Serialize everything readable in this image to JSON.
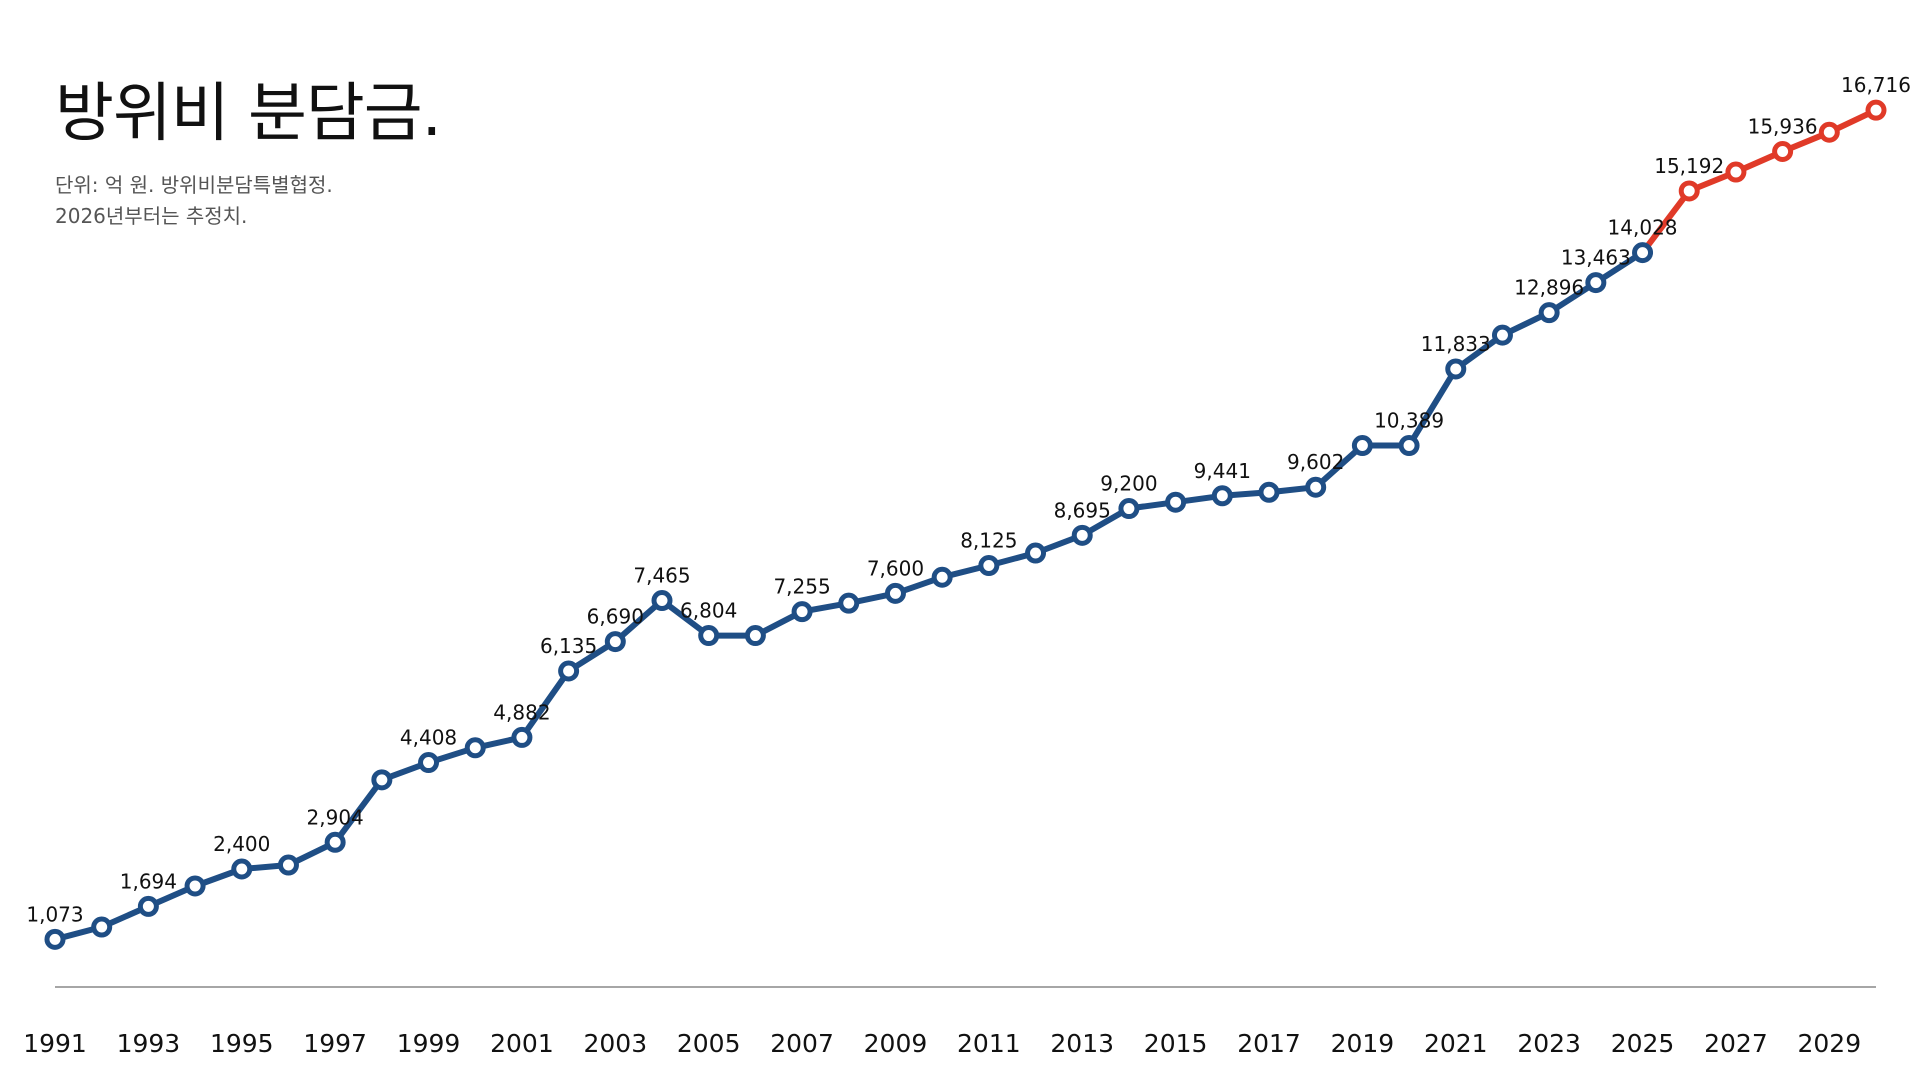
{
  "colors": {
    "actual": "#1F4E85",
    "estimate": "#E03A28",
    "axis": "#888888",
    "text": "#111111",
    "subtitle": "#555555",
    "background": "#ffffff"
  },
  "chart_data": {
    "type": "line",
    "title": "방위비 분담금.",
    "subtitle_lines": [
      "단위: 억 원. 방위비분담특별협정.",
      "2026년부터는 추정치."
    ],
    "xlabel": "",
    "ylabel": "",
    "grid": false,
    "legend": "none",
    "x": [
      1991,
      1992,
      1993,
      1994,
      1995,
      1996,
      1997,
      1998,
      1999,
      2000,
      2001,
      2002,
      2003,
      2004,
      2005,
      2006,
      2007,
      2008,
      2009,
      2010,
      2011,
      2012,
      2013,
      2014,
      2015,
      2016,
      2017,
      2018,
      2019,
      2020,
      2021,
      2022,
      2023,
      2024,
      2025,
      2026,
      2027,
      2028,
      2029,
      2030
    ],
    "x_tick_labels": [
      "1991",
      "1993",
      "1995",
      "1997",
      "1999",
      "2001",
      "2003",
      "2005",
      "2007",
      "2009",
      "2011",
      "2013",
      "2015",
      "2017",
      "2019",
      "2021",
      "2023",
      "2025",
      "2027",
      "2029"
    ],
    "y_range": [
      400,
      17700
    ],
    "series": [
      {
        "status": "actual",
        "x": [
          1991,
          1992,
          1993,
          1994,
          1995,
          1996,
          1997,
          1998,
          1999,
          2000,
          2001,
          2002,
          2003,
          2004,
          2005,
          2006,
          2007,
          2008,
          2009,
          2010,
          2011,
          2012,
          2013,
          2014,
          2015,
          2016,
          2017,
          2018,
          2019,
          2020,
          2021,
          2022,
          2023,
          2024,
          2025
        ],
        "values": [
          1073,
          1305,
          1694,
          2080,
          2400,
          2475,
          2904,
          4082,
          4408,
          4687,
          4882,
          6135,
          6690,
          7465,
          6804,
          6804,
          7255,
          7415,
          7600,
          7904,
          8125,
          8361,
          8695,
          9200,
          9320,
          9441,
          9507,
          9602,
          10389,
          10389,
          11833,
          12472,
          12896,
          13463,
          14028
        ]
      },
      {
        "status": "estimate",
        "x": [
          2025,
          2026,
          2027,
          2028,
          2029,
          2030
        ],
        "values": [
          14028,
          15192,
          15549,
          15936,
          16299,
          16716
        ]
      }
    ],
    "data_labels": [
      {
        "x": 1991,
        "text": "1,073"
      },
      {
        "x": 1993,
        "text": "1,694"
      },
      {
        "x": 1995,
        "text": "2,400"
      },
      {
        "x": 1997,
        "text": "2,904"
      },
      {
        "x": 1999,
        "text": "4,408"
      },
      {
        "x": 2001,
        "text": "4,882"
      },
      {
        "x": 2002,
        "text": "6,135"
      },
      {
        "x": 2003,
        "text": "6,690"
      },
      {
        "x": 2004,
        "text": "7,465"
      },
      {
        "x": 2005,
        "text": "6,804"
      },
      {
        "x": 2007,
        "text": "7,255"
      },
      {
        "x": 2009,
        "text": "7,600"
      },
      {
        "x": 2011,
        "text": "8,125"
      },
      {
        "x": 2013,
        "text": "8,695"
      },
      {
        "x": 2014,
        "text": "9,200"
      },
      {
        "x": 2016,
        "text": "9,441"
      },
      {
        "x": 2018,
        "text": "9,602"
      },
      {
        "x": 2020,
        "text": "10,389"
      },
      {
        "x": 2021,
        "text": "11,833"
      },
      {
        "x": 2023,
        "text": "12,896"
      },
      {
        "x": 2024,
        "text": "13,463"
      },
      {
        "x": 2025,
        "text": "14,028"
      },
      {
        "x": 2026,
        "text": "15,192"
      },
      {
        "x": 2028,
        "text": "15,936"
      },
      {
        "x": 2030,
        "text": "16,716"
      }
    ]
  }
}
